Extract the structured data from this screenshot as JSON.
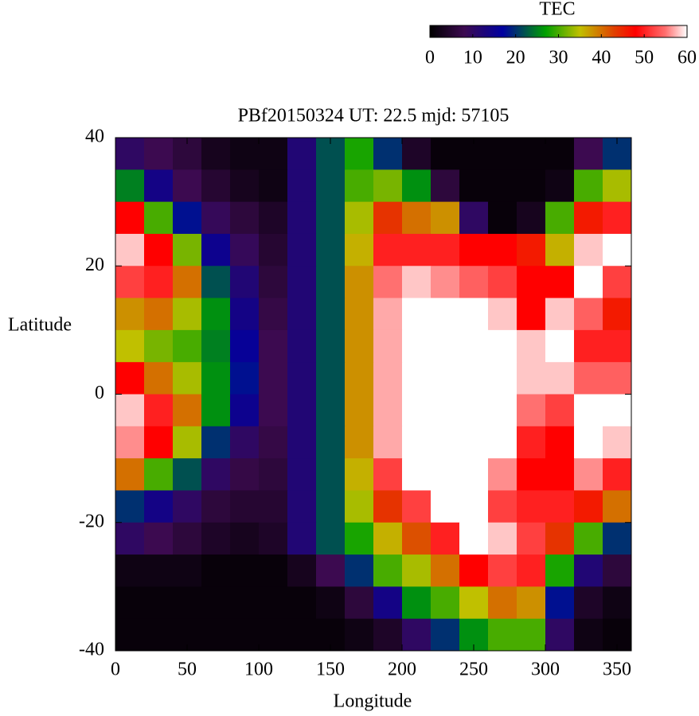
{
  "chart_data": {
    "type": "heatmap",
    "title": "PBf20150324  UT: 22.5  mjd: 57105",
    "xlabel": "Longitude",
    "ylabel": "Latitude",
    "x": [
      10,
      30,
      50,
      70,
      90,
      110,
      130,
      150,
      170,
      190,
      210,
      230,
      250,
      270,
      290,
      310,
      330,
      350
    ],
    "y": [
      37.5,
      32.5,
      27.5,
      22.5,
      17.5,
      12.5,
      7.5,
      2.5,
      -2.5,
      -7.5,
      -12.5,
      -17.5,
      -22.5,
      -27.5,
      -32.5,
      -37.5
    ],
    "z": [
      [
        10,
        8,
        6,
        3,
        2,
        2,
        12,
        22,
        28,
        20,
        4,
        1,
        1,
        1,
        1,
        1,
        8,
        20
      ],
      [
        25,
        14,
        8,
        5,
        3,
        2,
        12,
        22,
        30,
        32,
        26,
        6,
        1,
        1,
        1,
        2,
        30,
        34
      ],
      [
        48,
        30,
        18,
        9,
        6,
        4,
        12,
        22,
        34,
        44,
        40,
        38,
        10,
        1,
        3,
        30,
        46,
        50
      ],
      [
        58,
        48,
        32,
        15,
        9,
        5,
        12,
        22,
        36,
        50,
        50,
        50,
        48,
        48,
        46,
        36,
        58,
        60
      ],
      [
        52,
        50,
        40,
        22,
        12,
        6,
        12,
        22,
        38,
        55,
        58,
        56,
        54,
        52,
        48,
        48,
        60,
        52
      ],
      [
        38,
        40,
        34,
        26,
        14,
        7,
        12,
        22,
        38,
        57,
        60,
        60,
        60,
        58,
        48,
        58,
        54,
        46
      ],
      [
        35,
        32,
        30,
        25,
        16,
        8,
        12,
        22,
        38,
        57,
        60,
        60,
        60,
        60,
        58,
        60,
        50,
        50
      ],
      [
        48,
        40,
        34,
        26,
        18,
        8,
        12,
        22,
        38,
        57,
        60,
        60,
        60,
        60,
        58,
        58,
        54,
        54
      ],
      [
        58,
        50,
        40,
        26,
        15,
        8,
        12,
        22,
        38,
        57,
        60,
        60,
        60,
        60,
        55,
        52,
        60,
        60
      ],
      [
        56,
        48,
        34,
        20,
        10,
        7,
        12,
        22,
        38,
        57,
        60,
        60,
        60,
        60,
        50,
        48,
        60,
        58
      ],
      [
        40,
        30,
        22,
        10,
        7,
        6,
        12,
        22,
        36,
        52,
        60,
        60,
        60,
        56,
        48,
        48,
        56,
        50
      ],
      [
        20,
        14,
        10,
        6,
        5,
        5,
        12,
        22,
        34,
        44,
        52,
        60,
        60,
        52,
        50,
        50,
        46,
        40
      ],
      [
        10,
        8,
        6,
        4,
        3,
        4,
        12,
        22,
        28,
        36,
        42,
        50,
        60,
        58,
        52,
        44,
        30,
        20
      ],
      [
        2,
        2,
        2,
        1,
        1,
        1,
        3,
        8,
        20,
        30,
        34,
        40,
        48,
        52,
        50,
        28,
        12,
        6
      ],
      [
        1,
        1,
        1,
        1,
        1,
        1,
        1,
        2,
        6,
        14,
        26,
        30,
        35,
        40,
        38,
        18,
        4,
        2
      ],
      [
        1,
        1,
        1,
        1,
        1,
        1,
        1,
        1,
        2,
        4,
        10,
        20,
        26,
        30,
        30,
        10,
        2,
        1
      ]
    ],
    "xlim": [
      0,
      360
    ],
    "xticks": [
      0,
      50,
      100,
      150,
      200,
      250,
      300,
      350
    ],
    "ylim": [
      -40,
      40
    ],
    "yticks": [
      -40,
      -20,
      0,
      20,
      40
    ],
    "colorbar": {
      "label": "TEC",
      "clim": [
        0,
        60
      ],
      "cticks": [
        0,
        10,
        20,
        30,
        40,
        50,
        60
      ],
      "colormap": [
        {
          "value": 0,
          "color": "#000000"
        },
        {
          "value": 8,
          "color": "#3c0a50"
        },
        {
          "value": 17,
          "color": "#0000a0"
        },
        {
          "value": 27,
          "color": "#00a000"
        },
        {
          "value": 35,
          "color": "#c0c000"
        },
        {
          "value": 43,
          "color": "#e04000"
        },
        {
          "value": 48,
          "color": "#ff0000"
        },
        {
          "value": 55,
          "color": "#ff7070"
        },
        {
          "value": 60,
          "color": "#ffffff"
        }
      ]
    }
  }
}
